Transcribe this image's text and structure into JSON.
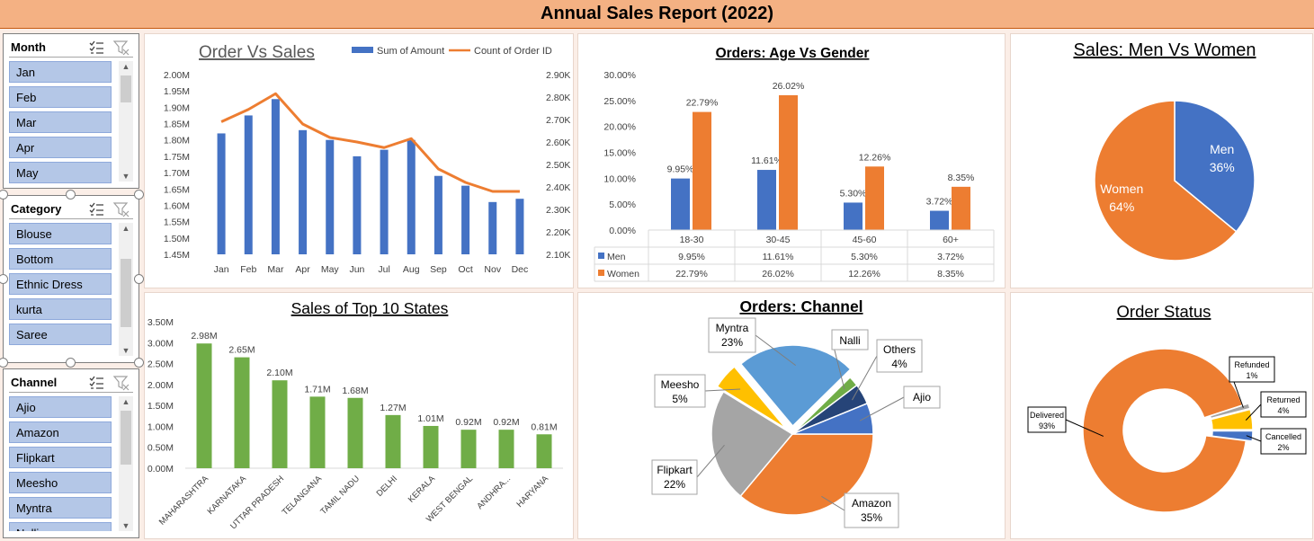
{
  "report_title": "Annual Sales Report (2022)",
  "slicers": {
    "month": {
      "title": "Month",
      "items": [
        "Jan",
        "Feb",
        "Mar",
        "Apr",
        "May"
      ]
    },
    "category": {
      "title": "Category",
      "items": [
        "Blouse",
        "Bottom",
        "Ethnic Dress",
        "kurta",
        "Saree"
      ]
    },
    "channel": {
      "title": "Channel",
      "items": [
        "Ajio",
        "Amazon",
        "Flipkart",
        "Meesho",
        "Myntra",
        "Nalli"
      ]
    }
  },
  "colors": {
    "blue": "#4472c4",
    "orange": "#ed7d31",
    "green": "#70ad47",
    "gray": "#a5a5a5",
    "light_blue": "#5b9bd5",
    "yellow": "#ffc000",
    "dark_blue": "#264478",
    "title_bar": "#f4b183"
  },
  "chart_data": [
    {
      "id": "order_vs_sales",
      "type": "bar",
      "title": "Order Vs Sales",
      "categories": [
        "Jan",
        "Feb",
        "Mar",
        "Apr",
        "May",
        "Jun",
        "Jul",
        "Aug",
        "Sep",
        "Oct",
        "Nov",
        "Dec"
      ],
      "series": [
        {
          "name": "Sum of Amount",
          "type": "bar",
          "axis": "left",
          "values": [
            1.82,
            1.875,
            1.925,
            1.83,
            1.8,
            1.75,
            1.77,
            1.8,
            1.69,
            1.66,
            1.61,
            1.62
          ]
        },
        {
          "name": "Count of Order ID",
          "type": "line",
          "axis": "right",
          "values": [
            2.69,
            2.745,
            2.815,
            2.68,
            2.62,
            2.6,
            2.575,
            2.615,
            2.48,
            2.42,
            2.38,
            2.38
          ]
        }
      ],
      "y_left": {
        "min": 1.45,
        "max": 2.0,
        "ticks": [
          "2.00M",
          "1.95M",
          "1.90M",
          "1.85M",
          "1.80M",
          "1.75M",
          "1.70M",
          "1.65M",
          "1.60M",
          "1.55M",
          "1.50M",
          "1.45M"
        ]
      },
      "y_right": {
        "min": 2.1,
        "max": 2.9,
        "ticks": [
          "2.90K",
          "2.80K",
          "2.70K",
          "2.60K",
          "2.50K",
          "2.40K",
          "2.30K",
          "2.20K",
          "2.10K"
        ]
      },
      "legend": "top-right",
      "grid": false
    },
    {
      "id": "age_vs_gender",
      "type": "bar",
      "title": "Orders: Age Vs Gender",
      "categories": [
        "18-30",
        "30-45",
        "45-60",
        "60+"
      ],
      "series": [
        {
          "name": "Men",
          "values": [
            9.95,
            11.61,
            5.3,
            3.72
          ],
          "labels": [
            "9.95%",
            "11.61%",
            "5.30%",
            "3.72%"
          ]
        },
        {
          "name": "Women",
          "values": [
            22.79,
            26.02,
            12.26,
            8.35
          ],
          "labels": [
            "22.79%",
            "26.02%",
            "12.26%",
            "8.35%"
          ]
        }
      ],
      "ylim": [
        0,
        30
      ],
      "y_ticks": [
        "30.00%",
        "25.00%",
        "20.00%",
        "15.00%",
        "10.00%",
        "5.00%",
        "0.00%"
      ],
      "data_table": true,
      "grid": false
    },
    {
      "id": "men_vs_women",
      "type": "pie",
      "title": "Sales:  Men Vs Women",
      "slices": [
        {
          "label": "Men",
          "value": 36,
          "pct": "36%"
        },
        {
          "label": "Women",
          "value": 64,
          "pct": "64%"
        }
      ]
    },
    {
      "id": "top_states",
      "type": "bar",
      "title": "Sales of Top 10 States",
      "categories": [
        "MAHARASHTRA",
        "KARNATAKA",
        "UTTAR PRADESH",
        "TELANGANA",
        "TAMIL NADU",
        "DELHI",
        "KERALA",
        "WEST BENGAL",
        "ANDHRA...",
        "HARYANA"
      ],
      "values": [
        2.98,
        2.65,
        2.1,
        1.71,
        1.68,
        1.27,
        1.01,
        0.92,
        0.92,
        0.81
      ],
      "labels": [
        "2.98M",
        "2.65M",
        "2.10M",
        "1.71M",
        "1.68M",
        "1.27M",
        "1.01M",
        "0.92M",
        "0.92M",
        "0.81M"
      ],
      "ylim": [
        0,
        3.5
      ],
      "y_ticks": [
        "3.50M",
        "3.00M",
        "2.50M",
        "2.00M",
        "1.50M",
        "1.00M",
        "0.50M",
        "0.00M"
      ],
      "grid": false
    },
    {
      "id": "orders_channel",
      "type": "pie",
      "title": "Orders: Channel",
      "slices": [
        {
          "label": "Amazon",
          "value": 35,
          "pct": "35%"
        },
        {
          "label": "Flipkart",
          "value": 22,
          "pct": "22%"
        },
        {
          "label": "Meesho",
          "value": 5,
          "pct": "5%"
        },
        {
          "label": "Myntra",
          "value": 23,
          "pct": "23%"
        },
        {
          "label": "Nalli",
          "value": 2,
          "pct": ""
        },
        {
          "label": "Others",
          "value": 4,
          "pct": "4%"
        },
        {
          "label": "Ajio",
          "value": 6,
          "pct": ""
        }
      ]
    },
    {
      "id": "order_status",
      "type": "pie",
      "title": "Order Status",
      "donut": true,
      "slices": [
        {
          "label": "Cancelled",
          "value": 2,
          "pct": "2%"
        },
        {
          "label": "Delivered",
          "value": 93,
          "pct": "93%"
        },
        {
          "label": "Refunded",
          "value": 1,
          "pct": "1%"
        },
        {
          "label": "Returned",
          "value": 4,
          "pct": "4%"
        }
      ]
    }
  ]
}
